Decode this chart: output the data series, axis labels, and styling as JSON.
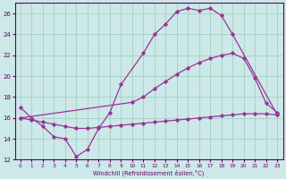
{
  "xlabel": "Windchill (Refroidissement éolien,°C)",
  "xlim": [
    -0.5,
    23.5
  ],
  "ylim": [
    12,
    27
  ],
  "xticks": [
    0,
    1,
    2,
    3,
    4,
    5,
    6,
    7,
    8,
    9,
    10,
    11,
    12,
    13,
    14,
    15,
    16,
    17,
    18,
    19,
    20,
    21,
    22,
    23
  ],
  "yticks": [
    12,
    14,
    16,
    18,
    20,
    22,
    24,
    26
  ],
  "background_color": "#cce8e8",
  "grid_color": "#99ccbb",
  "line_color": "#993399",
  "s1x": [
    0,
    1,
    2,
    3,
    4,
    5,
    6,
    7,
    8,
    9,
    11,
    12,
    13,
    14,
    15,
    16,
    17,
    18,
    19,
    23
  ],
  "s1y": [
    17.0,
    16.0,
    15.2,
    14.2,
    14.0,
    12.3,
    13.0,
    15.0,
    16.5,
    19.2,
    22.2,
    24.0,
    25.0,
    26.2,
    26.5,
    26.3,
    26.5,
    25.8,
    24.0,
    16.3
  ],
  "s2x": [
    0,
    10,
    11,
    12,
    13,
    14,
    15,
    16,
    17,
    18,
    19,
    20,
    21,
    22,
    23
  ],
  "s2y": [
    16.0,
    17.5,
    18.0,
    18.8,
    19.5,
    20.2,
    20.8,
    21.3,
    21.7,
    22.0,
    22.2,
    21.7,
    19.8,
    17.4,
    16.5
  ],
  "s3x": [
    0,
    1,
    2,
    3,
    4,
    5,
    6,
    7,
    8,
    9,
    10,
    11,
    12,
    13,
    14,
    15,
    16,
    17,
    18,
    19,
    20,
    21,
    22,
    23
  ],
  "s3y": [
    16.0,
    15.8,
    15.6,
    15.4,
    15.2,
    15.0,
    15.0,
    15.1,
    15.2,
    15.3,
    15.4,
    15.5,
    15.6,
    15.7,
    15.8,
    15.9,
    16.0,
    16.1,
    16.2,
    16.3,
    16.4,
    16.4,
    16.4,
    16.3
  ]
}
